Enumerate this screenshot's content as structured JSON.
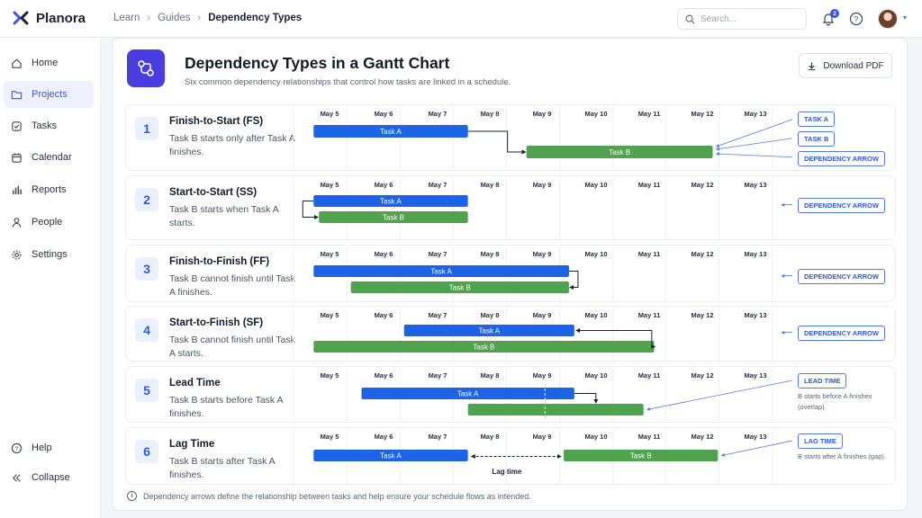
{
  "app": {
    "name": "Planora"
  },
  "breadcrumb": [
    "Learn",
    "Guides",
    "Dependency Types"
  ],
  "search": {
    "placeholder": "Search..."
  },
  "notifications": {
    "count": "2"
  },
  "sidebar": {
    "items": [
      {
        "label": "Home",
        "icon": "home-icon"
      },
      {
        "label": "Projects",
        "icon": "folder-icon",
        "active": true
      },
      {
        "label": "Tasks",
        "icon": "check-square-icon"
      },
      {
        "label": "Calendar",
        "icon": "calendar-icon"
      },
      {
        "label": "Reports",
        "icon": "bar-chart-icon"
      },
      {
        "label": "People",
        "icon": "person-icon"
      },
      {
        "label": "Settings",
        "icon": "gear-icon"
      }
    ],
    "bottom": [
      {
        "label": "Help",
        "icon": "help-circle-icon"
      },
      {
        "label": "Collapse",
        "icon": "collapse-icon"
      }
    ]
  },
  "page": {
    "title": "Dependency Types in a Gantt Chart",
    "subtitle": "Six common dependency relationships that control how tasks are linked in a schedule.",
    "download_label": "Download PDF",
    "footnote": "Dependency arrows define the relationship between tasks and help ensure your schedule flows as intended."
  },
  "colors": {
    "task_a": "#1c63e6",
    "task_b": "#4fa34e",
    "accent": "#3a57e8",
    "callout": "#2f5bd8"
  },
  "dates": [
    "May 5",
    "May 6",
    "May 7",
    "May 8",
    "May 9",
    "May 10",
    "May 11",
    "May 12",
    "May 13"
  ],
  "rows": [
    {
      "num": "1",
      "title": "Finish-to-Start (FS)",
      "desc": "Task B starts only after Task A finishes.",
      "bars": [
        {
          "label": "Task A",
          "start": 4.7,
          "end": 7.6,
          "color": "a"
        },
        {
          "label": "Task B",
          "start": 8.7,
          "end": 12.2,
          "color": "b"
        }
      ],
      "callouts": [
        "TASK A",
        "TASK B",
        "DEPENDENCY ARROW"
      ]
    },
    {
      "num": "2",
      "title": "Start-to-Start (SS)",
      "desc": "Task B starts when Task A starts.",
      "bars": [
        {
          "label": "Task A",
          "start": 4.7,
          "end": 7.6,
          "color": "a"
        },
        {
          "label": "Task B",
          "start": 4.8,
          "end": 7.6,
          "color": "b"
        }
      ],
      "callouts": [
        "DEPENDENCY ARROW"
      ]
    },
    {
      "num": "3",
      "title": "Finish-to-Finish (FF)",
      "desc": "Task B cannot finish until Task A finishes.",
      "bars": [
        {
          "label": "Task A",
          "start": 4.7,
          "end": 9.5,
          "color": "a"
        },
        {
          "label": "Task B",
          "start": 5.4,
          "end": 9.5,
          "color": "b"
        }
      ],
      "callouts": [
        "DEPENDENCY ARROW"
      ]
    },
    {
      "num": "4",
      "title": "Start-to-Finish (SF)",
      "desc": "Task B cannot finish until Task A starts.",
      "bars": [
        {
          "label": "Task A",
          "start": 6.4,
          "end": 9.6,
          "color": "a"
        },
        {
          "label": "Task B",
          "start": 4.7,
          "end": 11.1,
          "color": "b"
        }
      ],
      "callouts": [
        "DEPENDENCY ARROW"
      ]
    },
    {
      "num": "5",
      "title": "Lead Time",
      "desc": "Task B starts before Task A finishes.",
      "bars": [
        {
          "label": "Task A",
          "start": 5.6,
          "end": 9.6,
          "color": "a"
        },
        {
          "label": "",
          "start": 7.6,
          "end": 10.9,
          "color": "b"
        }
      ],
      "callouts": [
        "LEAD TIME"
      ],
      "note": "B starts before A finishes (overlap)."
    },
    {
      "num": "6",
      "title": "Lag Time",
      "desc": "Task B starts after Task A finishes.",
      "bars": [
        {
          "label": "Task A",
          "start": 4.7,
          "end": 7.6,
          "color": "a"
        },
        {
          "label": "Task B",
          "start": 9.4,
          "end": 12.3,
          "color": "b"
        }
      ],
      "callouts": [
        "LAG TIME"
      ],
      "note": "B starts after A finishes (gap).",
      "gap_label": "Lag time"
    }
  ]
}
